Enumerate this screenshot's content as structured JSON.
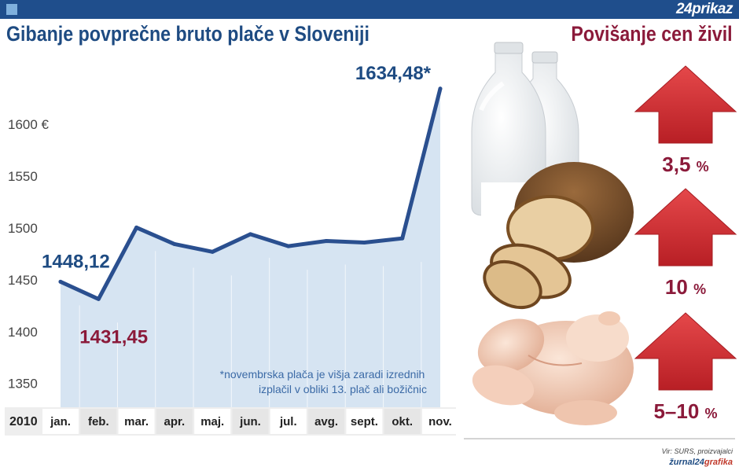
{
  "header": {
    "brand": "24prikaz"
  },
  "title_left": "Gibanje povprečne bruto plače v Sloveniji",
  "title_right": "Povišanje cen živil",
  "year_label": "2010",
  "footnote_line1": "*novembrska plača je višja zaradi izrednih",
  "footnote_line2": "izplačil v obliki 13. plač ali božičnic",
  "source": "Vir: SURS, proizvajalci",
  "logo_main": "žurnal24",
  "logo_sub": "grafika",
  "chart_data": [
    {
      "type": "line",
      "title": "Gibanje povprečne bruto plače v Sloveniji",
      "categories": [
        "jan.",
        "feb.",
        "mar.",
        "apr.",
        "maj.",
        "jun.",
        "jul.",
        "avg.",
        "sept.",
        "okt.",
        "nov."
      ],
      "values": [
        1448.12,
        1431.45,
        1500.5,
        1484.5,
        1477,
        1494,
        1482.5,
        1487.5,
        1486,
        1490,
        1634.48
      ],
      "point_labels": [
        {
          "index": 0,
          "text": "1448,12",
          "color": "#1e4b82"
        },
        {
          "index": 1,
          "text": "1431,45",
          "color": "#8b1a3a"
        },
        {
          "index": 10,
          "text": "1634,48*",
          "color": "#1e4b82"
        }
      ],
      "yticks": [
        1350,
        1400,
        1450,
        1500,
        1550,
        1600
      ],
      "ytick_labels": [
        "1350",
        "1400",
        "1450",
        "1500",
        "1550",
        "1600 €"
      ],
      "ylim": [
        1327,
        1670
      ],
      "grid": false,
      "line_color": "#2a4f8f",
      "area_color": "#d6e4f2"
    },
    {
      "type": "bar",
      "title": "Povišanje cen živil",
      "items": [
        {
          "label": "3,5",
          "icon": "milk-bottles"
        },
        {
          "label": "10",
          "icon": "bread"
        },
        {
          "label": "5–10",
          "icon": "chicken"
        }
      ],
      "unit": "%",
      "arrow_color": "#d23a3a"
    }
  ]
}
